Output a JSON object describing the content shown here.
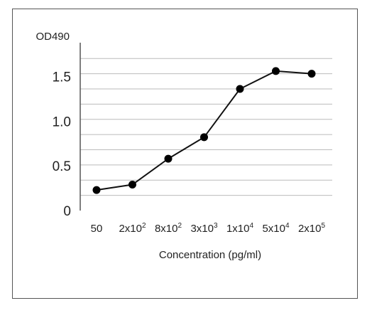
{
  "chart_data": {
    "type": "line",
    "title": "",
    "ylabel": "OD490",
    "xlabel": "Concentration (pg/ml)",
    "categories": [
      {
        "base": "50",
        "exp": ""
      },
      {
        "base": "2x10",
        "exp": "2"
      },
      {
        "base": "8x10",
        "exp": "2"
      },
      {
        "base": "3x10",
        "exp": "3"
      },
      {
        "base": "1x10",
        "exp": "4"
      },
      {
        "base": "5x10",
        "exp": "4"
      },
      {
        "base": "2x10",
        "exp": "5"
      }
    ],
    "values": [
      0.23,
      0.29,
      0.58,
      0.82,
      1.36,
      1.56,
      1.53
    ],
    "ylim": [
      0,
      1.75
    ],
    "yticks": [
      {
        "value": 0,
        "label": "0"
      },
      {
        "value": 0.5,
        "label": "0.5"
      },
      {
        "value": 1.0,
        "label": "1.0"
      },
      {
        "value": 1.5,
        "label": "1.5"
      }
    ],
    "grid_step": 0.17,
    "grid": true,
    "colors": {
      "line": "#111111",
      "marker": "#000000",
      "grid": "#bbbbbb",
      "axis": "#555555"
    }
  }
}
